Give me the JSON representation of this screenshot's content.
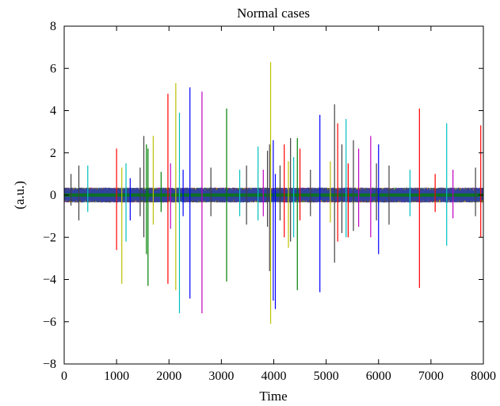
{
  "chart_data": {
    "type": "line",
    "title": "Normal cases",
    "xlabel": "Time",
    "ylabel": "(a.u.)",
    "xlim": [
      0,
      8000
    ],
    "ylim": [
      -8,
      8
    ],
    "xticks": [
      0,
      1000,
      2000,
      3000,
      4000,
      5000,
      6000,
      7000,
      8000
    ],
    "yticks": [
      -8,
      -6,
      -4,
      -2,
      0,
      2,
      4,
      6,
      8
    ],
    "grid": false,
    "legend": "none",
    "colors": [
      "#0000ff",
      "#008000",
      "#ff0000",
      "#00bfbf",
      "#bf00bf",
      "#bfbf00",
      "#404040",
      "#2b3fb0"
    ],
    "baseline_noise_amplitude": 0.35,
    "spikes": [
      {
        "x": 130,
        "max": 1.0,
        "min": -0.5,
        "color": "#404040"
      },
      {
        "x": 280,
        "max": 1.4,
        "min": -1.2,
        "color": "#404040"
      },
      {
        "x": 450,
        "max": 1.4,
        "min": -0.8,
        "color": "#00bfbf"
      },
      {
        "x": 1000,
        "max": 2.2,
        "min": -2.6,
        "color": "#ff0000"
      },
      {
        "x": 1100,
        "max": 1.3,
        "min": -4.2,
        "color": "#bfbf00"
      },
      {
        "x": 1180,
        "max": 1.5,
        "min": -2.2,
        "color": "#00bfbf"
      },
      {
        "x": 1260,
        "max": 0.8,
        "min": -1.2,
        "color": "#0000ff"
      },
      {
        "x": 1450,
        "max": 1.3,
        "min": -1.0,
        "color": "#404040"
      },
      {
        "x": 1520,
        "max": 2.8,
        "min": -2.0,
        "color": "#404040"
      },
      {
        "x": 1570,
        "max": 2.4,
        "min": -2.8,
        "color": "#008000"
      },
      {
        "x": 1600,
        "max": 2.2,
        "min": -4.3,
        "color": "#008000"
      },
      {
        "x": 1700,
        "max": 2.8,
        "min": -1.4,
        "color": "#bfbf00"
      },
      {
        "x": 1850,
        "max": 1.1,
        "min": -0.8,
        "color": "#008000"
      },
      {
        "x": 1980,
        "max": 4.8,
        "min": -4.2,
        "color": "#ff0000"
      },
      {
        "x": 2030,
        "max": 1.5,
        "min": -1.6,
        "color": "#bf00bf"
      },
      {
        "x": 2130,
        "max": 5.3,
        "min": -4.5,
        "color": "#bfbf00"
      },
      {
        "x": 2200,
        "max": 3.9,
        "min": -5.6,
        "color": "#00bfbf"
      },
      {
        "x": 2270,
        "max": 1.2,
        "min": -1.0,
        "color": "#0000ff"
      },
      {
        "x": 2400,
        "max": 5.1,
        "min": -4.9,
        "color": "#0000ff"
      },
      {
        "x": 2630,
        "max": 4.9,
        "min": -5.6,
        "color": "#bf00bf"
      },
      {
        "x": 2800,
        "max": 1.3,
        "min": -1.0,
        "color": "#404040"
      },
      {
        "x": 3100,
        "max": 4.1,
        "min": -4.1,
        "color": "#008000"
      },
      {
        "x": 3350,
        "max": 1.2,
        "min": -1.0,
        "color": "#00bfbf"
      },
      {
        "x": 3480,
        "max": 1.4,
        "min": -1.4,
        "color": "#404040"
      },
      {
        "x": 3700,
        "max": 2.3,
        "min": -1.2,
        "color": "#00bfbf"
      },
      {
        "x": 3800,
        "max": 1.2,
        "min": -1.0,
        "color": "#bf00bf"
      },
      {
        "x": 3880,
        "max": 2.1,
        "min": -1.5,
        "color": "#404040"
      },
      {
        "x": 3920,
        "max": 2.4,
        "min": -3.6,
        "color": "#404040"
      },
      {
        "x": 3940,
        "max": 6.3,
        "min": -6.1,
        "color": "#bfbf00"
      },
      {
        "x": 3990,
        "max": 2.6,
        "min": -5.0,
        "color": "#0000ff"
      },
      {
        "x": 4030,
        "max": 1.0,
        "min": -5.4,
        "color": "#0000ff"
      },
      {
        "x": 4120,
        "max": 1.4,
        "min": -1.2,
        "color": "#404040"
      },
      {
        "x": 4200,
        "max": 2.4,
        "min": -2.0,
        "color": "#ff0000"
      },
      {
        "x": 4280,
        "max": 1.6,
        "min": -2.5,
        "color": "#bfbf00"
      },
      {
        "x": 4320,
        "max": 2.7,
        "min": -2.2,
        "color": "#404040"
      },
      {
        "x": 4380,
        "max": 1.8,
        "min": -2.0,
        "color": "#00bfbf"
      },
      {
        "x": 4450,
        "max": 2.7,
        "min": -4.5,
        "color": "#008000"
      },
      {
        "x": 4500,
        "max": 2.2,
        "min": -1.2,
        "color": "#ff0000"
      },
      {
        "x": 4700,
        "max": 1.2,
        "min": -1.0,
        "color": "#404040"
      },
      {
        "x": 4880,
        "max": 3.8,
        "min": -4.6,
        "color": "#0000ff"
      },
      {
        "x": 5080,
        "max": 1.6,
        "min": -1.3,
        "color": "#bfbf00"
      },
      {
        "x": 5160,
        "max": 4.3,
        "min": -3.2,
        "color": "#404040"
      },
      {
        "x": 5220,
        "max": 3.4,
        "min": -2.2,
        "color": "#ff0000"
      },
      {
        "x": 5300,
        "max": 2.4,
        "min": -1.8,
        "color": "#404040"
      },
      {
        "x": 5380,
        "max": 3.6,
        "min": -2.0,
        "color": "#00bfbf"
      },
      {
        "x": 5420,
        "max": 1.5,
        "min": -2.0,
        "color": "#ff0000"
      },
      {
        "x": 5520,
        "max": 2.6,
        "min": -1.7,
        "color": "#404040"
      },
      {
        "x": 5620,
        "max": 2.2,
        "min": -1.5,
        "color": "#bf00bf"
      },
      {
        "x": 5850,
        "max": 2.8,
        "min": -2.0,
        "color": "#bf00bf"
      },
      {
        "x": 5960,
        "max": 1.5,
        "min": -1.2,
        "color": "#404040"
      },
      {
        "x": 6000,
        "max": 2.4,
        "min": -2.8,
        "color": "#0000ff"
      },
      {
        "x": 6200,
        "max": 1.4,
        "min": -1.4,
        "color": "#404040"
      },
      {
        "x": 6600,
        "max": 1.2,
        "min": -1.0,
        "color": "#00bfbf"
      },
      {
        "x": 6780,
        "max": 4.1,
        "min": -4.4,
        "color": "#ff0000"
      },
      {
        "x": 7080,
        "max": 1.0,
        "min": -0.8,
        "color": "#ff0000"
      },
      {
        "x": 7300,
        "max": 3.4,
        "min": -2.4,
        "color": "#00bfbf"
      },
      {
        "x": 7420,
        "max": 1.2,
        "min": -1.1,
        "color": "#bf00bf"
      },
      {
        "x": 7850,
        "max": 1.3,
        "min": -1.0,
        "color": "#404040"
      },
      {
        "x": 7950,
        "max": 3.3,
        "min": -2.0,
        "color": "#ff0000"
      }
    ]
  }
}
